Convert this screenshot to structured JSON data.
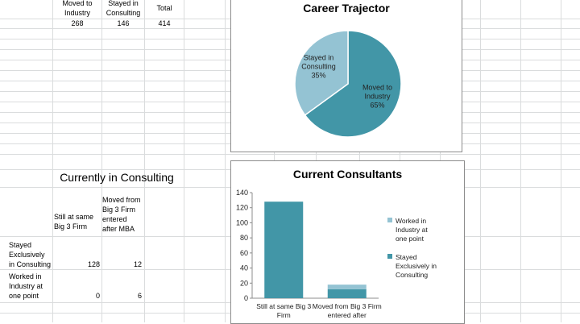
{
  "top_table": {
    "headers": [
      "Moved to\nIndustry",
      "Stayed in\nConsulting",
      "Total"
    ],
    "values": [
      "268",
      "146",
      "414"
    ]
  },
  "consulting_table": {
    "title": "Currently in Consulting",
    "col_headers": [
      "Still at same\nBig 3 Firm",
      "Moved from\nBig 3 Firm\nentered\nafter MBA"
    ],
    "rows": [
      {
        "label": "Stayed\nExclusively\nin Consulting",
        "values": [
          "128",
          "12"
        ]
      },
      {
        "label": "Worked in\nIndustry at\none point",
        "values": [
          "0",
          "6"
        ]
      }
    ]
  },
  "chart_data": [
    {
      "type": "pie",
      "title": "Career Trajector",
      "slices": [
        {
          "label": "Moved to Industry",
          "value": 65,
          "display": "65%",
          "color": "#4296a7"
        },
        {
          "label": "Stayed in Consulting",
          "value": 35,
          "display": "35%",
          "color": "#94c3d3"
        }
      ]
    },
    {
      "type": "bar",
      "title": "Current Consultants",
      "categories": [
        "Still at same Big 3 Firm",
        "Moved from Big 3 Firm entered after"
      ],
      "stacked": true,
      "series": [
        {
          "name": "Stayed Exclusively in Consulting",
          "values": [
            128,
            12
          ],
          "color": "#4296a7"
        },
        {
          "name": "Worked in Industry at one point",
          "values": [
            0,
            6
          ],
          "color": "#94c3d3"
        }
      ],
      "yticks": [
        "0",
        "20",
        "40",
        "60",
        "80",
        "100",
        "120",
        "140"
      ],
      "ylim": [
        0,
        140
      ],
      "legend": "right"
    }
  ]
}
